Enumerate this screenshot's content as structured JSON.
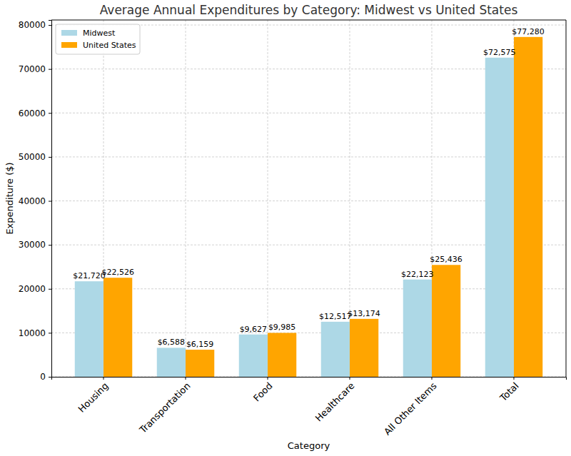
{
  "chart_data": {
    "type": "bar",
    "title": "Average Annual Expenditures by Category: Midwest vs United States",
    "x_label": "Category",
    "y_label": "Expenditure ($)",
    "categories": [
      "Housing",
      "Transportation",
      "Food",
      "Healthcare",
      "All Other Items",
      "Total"
    ],
    "series": [
      {
        "name": "Midwest",
        "color": "#add8e6",
        "values": [
          21720,
          6588,
          9627,
          12517,
          22123,
          72575
        ],
        "value_labels": [
          "$21,720",
          "$6,588",
          "$9,627",
          "$12,517",
          "$22,123",
          "$72,575"
        ]
      },
      {
        "name": "United States",
        "color": "#ffa500",
        "values": [
          22526,
          6159,
          9985,
          13174,
          25436,
          77280
        ],
        "value_labels": [
          "$22,526",
          "$6,159",
          "$9,985",
          "$13,174",
          "$25,436",
          "$77,280"
        ]
      }
    ],
    "ylim": [
      0,
      81144
    ],
    "yticks": [
      0,
      10000,
      20000,
      30000,
      40000,
      50000,
      60000,
      70000,
      80000
    ],
    "grid": true,
    "legend": "upper left",
    "data_labels": true
  }
}
